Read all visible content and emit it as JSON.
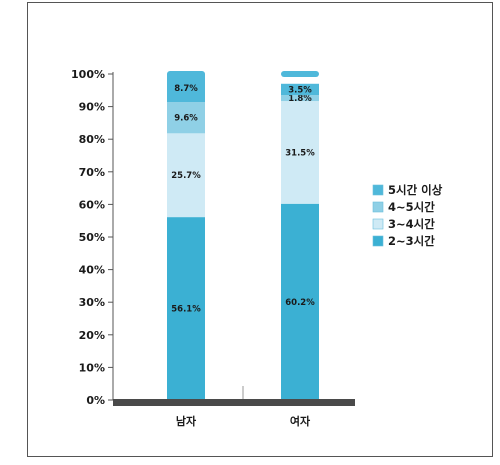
{
  "chart_data": {
    "type": "bar",
    "stacked": true,
    "categories": [
      "남자",
      "여자"
    ],
    "series": [
      {
        "name": "2~3시간",
        "values": [
          56.1,
          60.2
        ],
        "labels": [
          "56.1%",
          "60.2%"
        ],
        "color": "#3bb0d3"
      },
      {
        "name": "3~4시간",
        "values": [
          25.7,
          31.5
        ],
        "labels": [
          "25.7%",
          "31.5%"
        ],
        "color": "#cfeaf5"
      },
      {
        "name": "4~5시간",
        "values": [
          9.6,
          1.8
        ],
        "labels": [
          "9.6%",
          "1.8%"
        ],
        "color": "#8fd0e6"
      },
      {
        "name": "5시간 이상",
        "values": [
          8.7,
          3.5
        ],
        "labels": [
          "8.7%",
          "3.5%"
        ],
        "color": "#4fb8da"
      }
    ],
    "ylim": [
      0,
      100
    ],
    "ytick_labels": [
      "0%",
      "10%",
      "20%",
      "30%",
      "40%",
      "50%",
      "60%",
      "70%",
      "80%",
      "90%",
      "100%"
    ],
    "legend_order": [
      "5시간 이상",
      "4~5시간",
      "3~4시간",
      "2~3시간"
    ],
    "legend_position": "right",
    "grid": false,
    "colors": {
      "axis": "#555555",
      "floor": "#4a4a4a",
      "text": "#1a1a1a"
    }
  }
}
